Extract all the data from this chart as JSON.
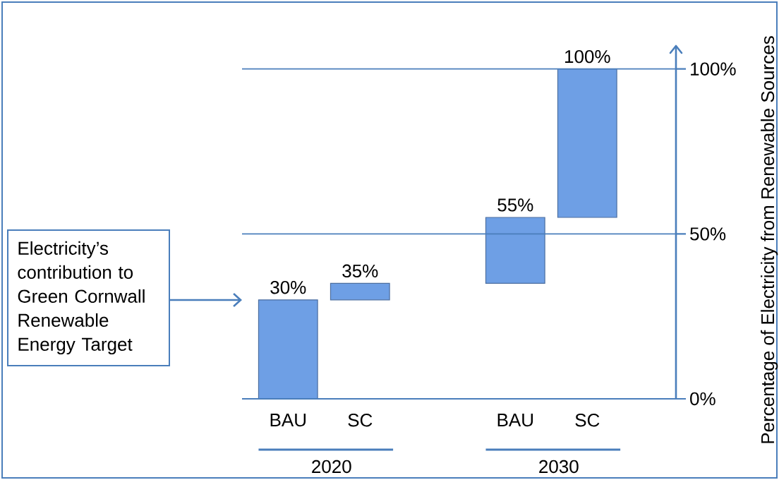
{
  "chart_data": {
    "type": "bar",
    "categories": [
      "BAU",
      "SC",
      "BAU",
      "SC"
    ],
    "values": [
      30,
      5,
      20,
      45
    ],
    "base": [
      0,
      30,
      35,
      55
    ],
    "value_labels": [
      "30%",
      "35%",
      "55%",
      "100%"
    ],
    "color": "#6e9fe5",
    "ylabel": "Percentage of Electricity from Renewable Sources",
    "ylim": [
      0,
      107
    ],
    "yticks": [
      {
        "value": 0,
        "label": "0%"
      },
      {
        "value": 50,
        "label": "50%"
      },
      {
        "value": 100,
        "label": "100%"
      }
    ],
    "grid": "y",
    "annotations": [
      "Electricity’s contribution to Green Cornwall Renewable Energy Target",
      "2020",
      "2030"
    ]
  }
}
